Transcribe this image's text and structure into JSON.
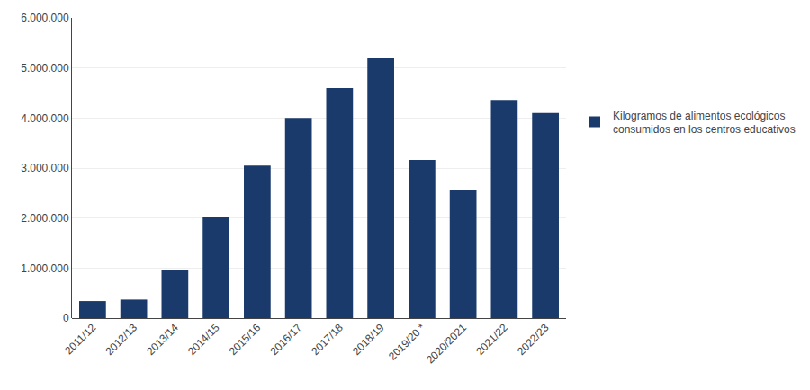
{
  "chart_data": {
    "type": "bar",
    "categories": [
      "2011/12",
      "2012/13",
      "2013/14",
      "2014/15",
      "2015/16",
      "2016/17",
      "2017/18",
      "2018/19",
      "2019/20 *",
      "2020/2021",
      "2021/22",
      "2022/23"
    ],
    "series": [
      {
        "name": "Kilogramos de alimentos ecológicos\nconsumidos en los centros educativos",
        "color": "#1a3a6b",
        "values": [
          340000,
          370000,
          950000,
          2030000,
          3050000,
          4000000,
          4600000,
          5200000,
          3160000,
          2570000,
          4360000,
          4100000
        ]
      }
    ],
    "ylim": [
      0,
      6000000
    ],
    "yticks": [
      0,
      {
        "value": 1000000,
        "label": "1.000.000"
      },
      {
        "value": 2000000,
        "label": "2.000.000"
      },
      {
        "value": 3000000,
        "label": "3.000.000"
      },
      {
        "value": 4000000,
        "label": "4.000.000"
      },
      {
        "value": 5000000,
        "label": "5.000.000"
      },
      {
        "value": 6000000,
        "label": "6.000.000"
      }
    ],
    "grid": true,
    "legend": "right"
  }
}
